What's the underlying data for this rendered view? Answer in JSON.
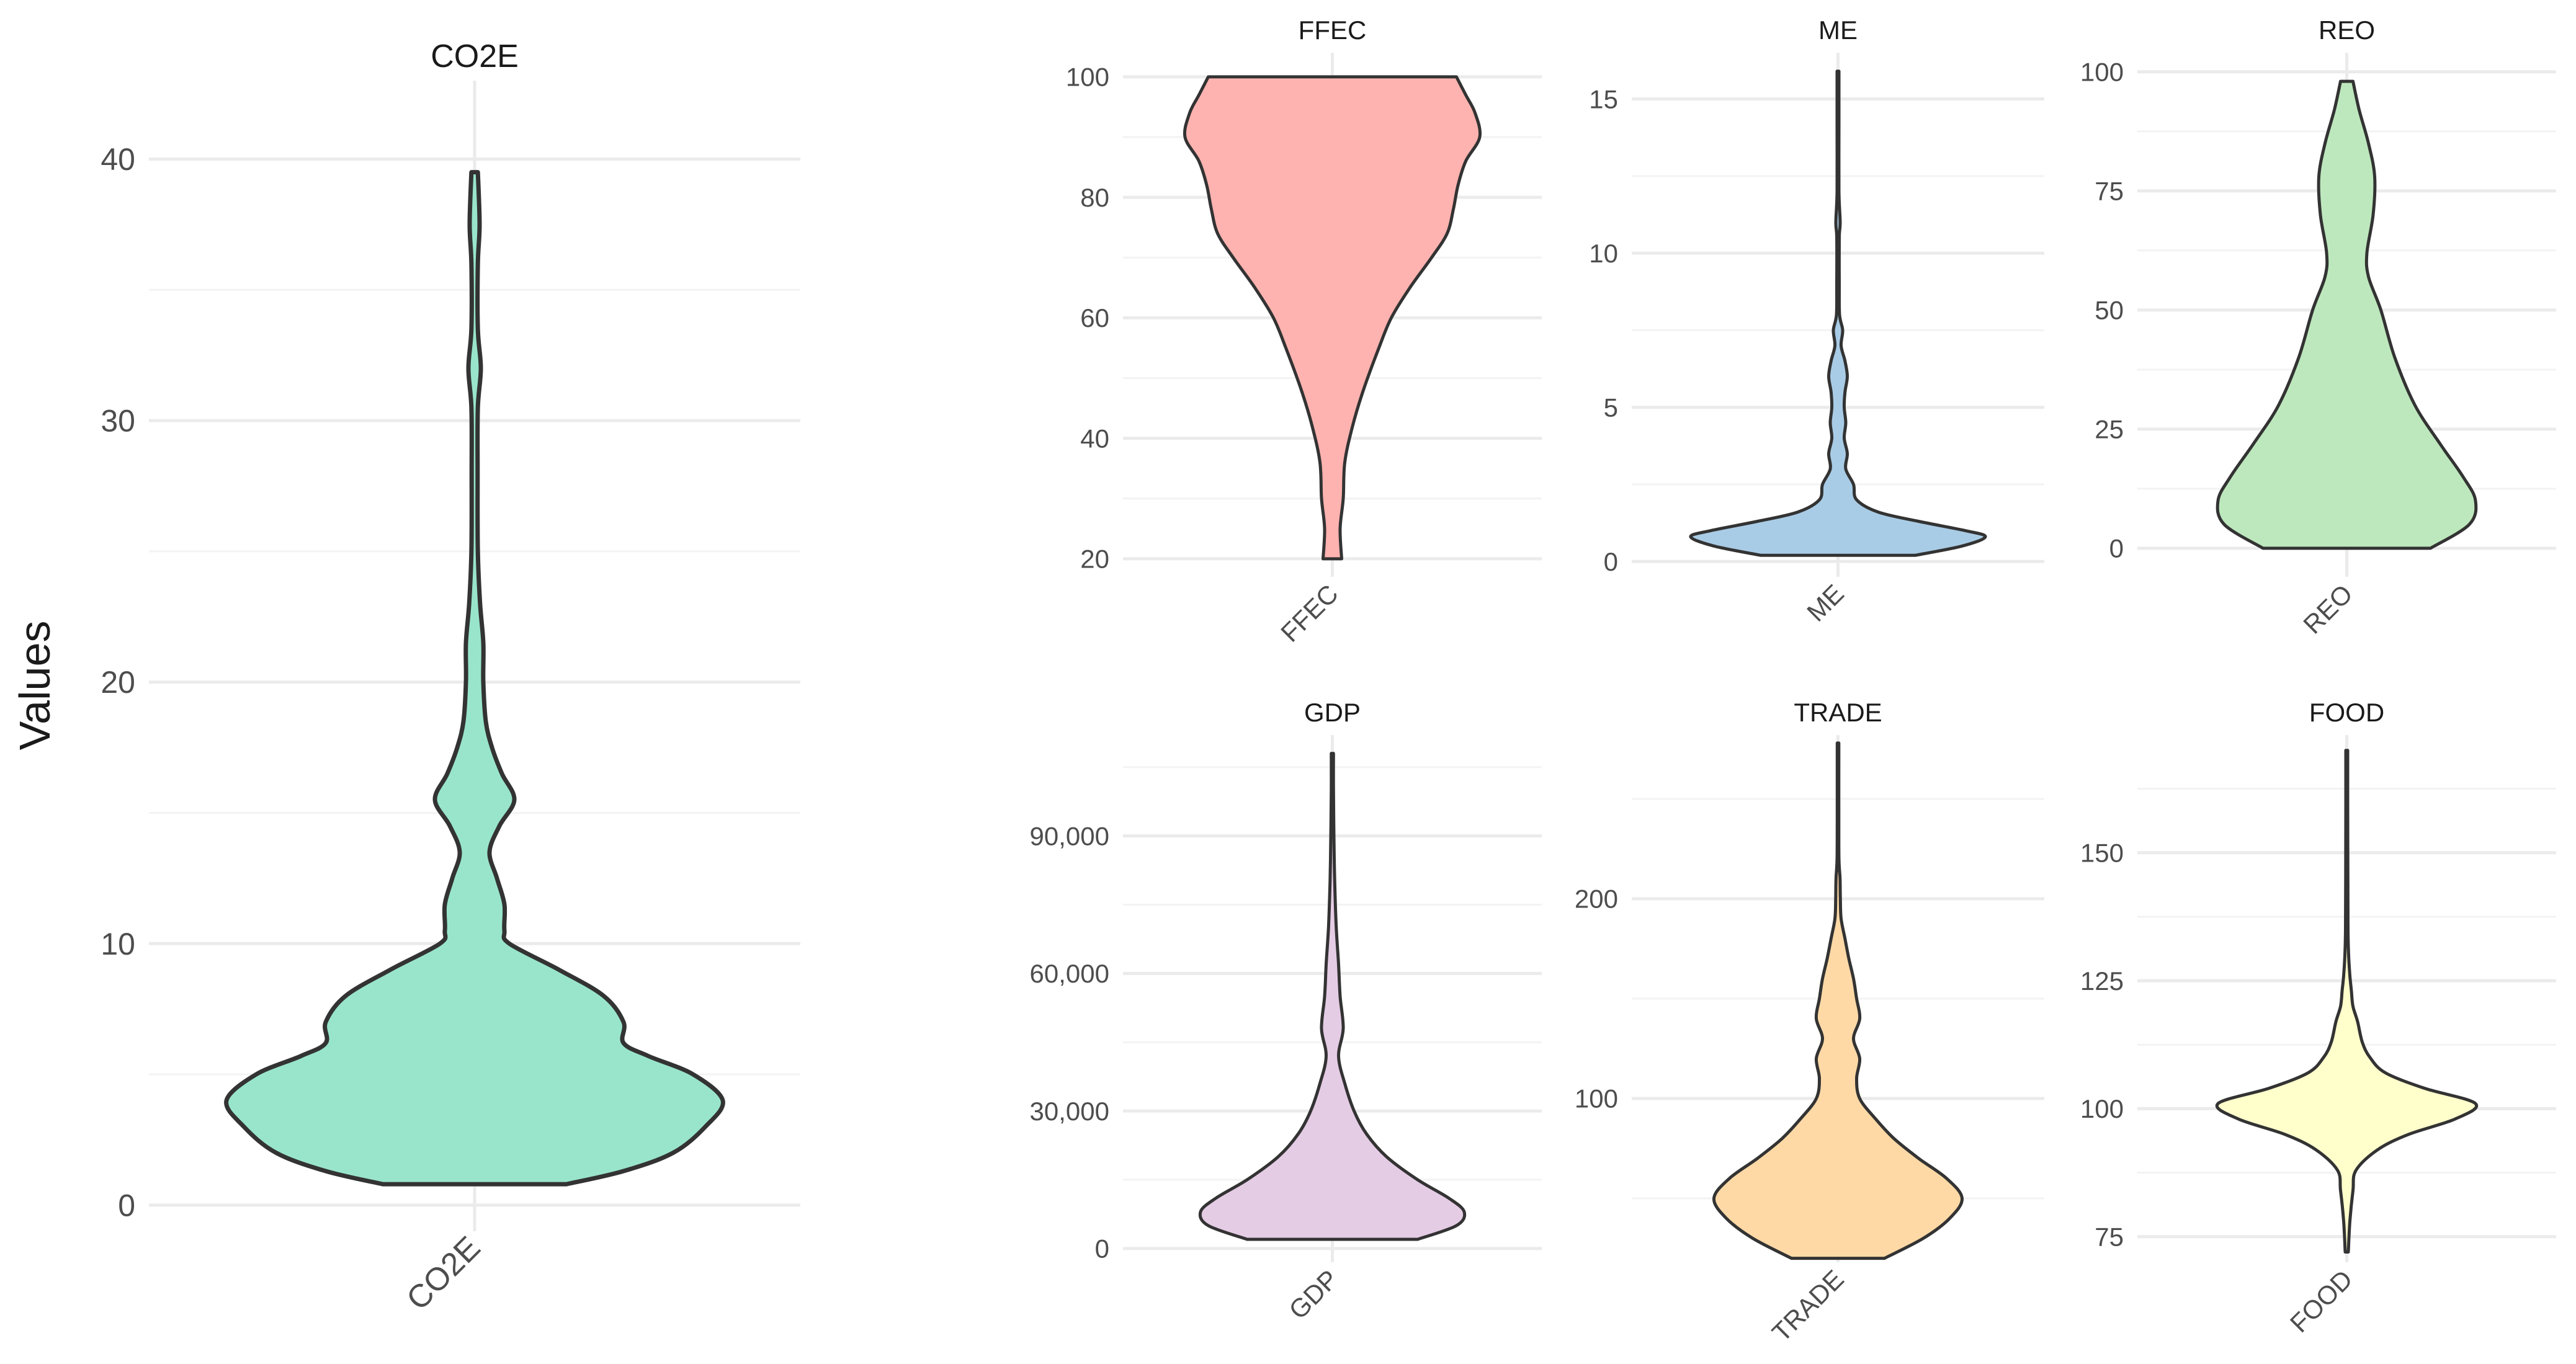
{
  "figure": {
    "ylabel": "Values"
  },
  "chart_data": [
    {
      "type": "violin",
      "title": "CO2E",
      "category": "CO2E",
      "ylim": [
        -1,
        43
      ],
      "yticks": [
        0,
        10,
        20,
        30,
        40
      ],
      "ytick_labels": [
        "0",
        "10",
        "20",
        "30",
        "40"
      ],
      "fill": "#99e5cc",
      "profile": [
        [
          0.8,
          0.37
        ],
        [
          1.3,
          0.6
        ],
        [
          2.0,
          0.8
        ],
        [
          3.0,
          0.93
        ],
        [
          4.0,
          1.0
        ],
        [
          5.0,
          0.88
        ],
        [
          5.7,
          0.7
        ],
        [
          6.2,
          0.6
        ],
        [
          7.0,
          0.6
        ],
        [
          8.0,
          0.52
        ],
        [
          9.0,
          0.34
        ],
        [
          10.0,
          0.14
        ],
        [
          10.5,
          0.12
        ],
        [
          11.5,
          0.12
        ],
        [
          12.5,
          0.09
        ],
        [
          13.5,
          0.06
        ],
        [
          14.5,
          0.1
        ],
        [
          15.5,
          0.16
        ],
        [
          16.5,
          0.11
        ],
        [
          17.5,
          0.07
        ],
        [
          18.5,
          0.045
        ],
        [
          20.0,
          0.035
        ],
        [
          21.5,
          0.035
        ],
        [
          23.0,
          0.022
        ],
        [
          25.0,
          0.013
        ],
        [
          28.0,
          0.012
        ],
        [
          30.5,
          0.013
        ],
        [
          32.0,
          0.025
        ],
        [
          33.5,
          0.013
        ],
        [
          36.0,
          0.013
        ],
        [
          37.5,
          0.02
        ],
        [
          39.5,
          0.013
        ]
      ]
    },
    {
      "type": "violin",
      "title": "FFEC",
      "category": "FFEC",
      "ylim": [
        17,
        104
      ],
      "yticks": [
        20,
        40,
        60,
        80,
        100
      ],
      "ytick_labels": [
        "20",
        "40",
        "60",
        "80",
        "100"
      ],
      "fill": "#ffb3b0",
      "profile": [
        [
          20,
          0.06
        ],
        [
          25,
          0.05
        ],
        [
          30,
          0.07
        ],
        [
          36,
          0.08
        ],
        [
          42,
          0.13
        ],
        [
          48,
          0.2
        ],
        [
          55,
          0.3
        ],
        [
          60,
          0.38
        ],
        [
          65,
          0.5
        ],
        [
          70,
          0.64
        ],
        [
          74,
          0.74
        ],
        [
          78,
          0.78
        ],
        [
          82,
          0.81
        ],
        [
          86,
          0.86
        ],
        [
          90,
          0.95
        ],
        [
          94,
          0.92
        ],
        [
          97,
          0.86
        ],
        [
          100,
          0.8
        ]
      ]
    },
    {
      "type": "violin",
      "title": "ME",
      "category": "ME",
      "ylim": [
        -0.5,
        16.5
      ],
      "yticks": [
        0,
        5,
        10,
        15
      ],
      "ytick_labels": [
        "0",
        "5",
        "10",
        "15"
      ],
      "fill": "#a9cce6",
      "profile": [
        [
          0.2,
          0.5
        ],
        [
          0.5,
          0.8
        ],
        [
          0.8,
          0.95
        ],
        [
          1.0,
          0.82
        ],
        [
          1.3,
          0.52
        ],
        [
          1.6,
          0.26
        ],
        [
          2.0,
          0.12
        ],
        [
          2.5,
          0.1
        ],
        [
          3.0,
          0.05
        ],
        [
          3.5,
          0.06
        ],
        [
          4.0,
          0.04
        ],
        [
          4.5,
          0.05
        ],
        [
          5.0,
          0.04
        ],
        [
          5.5,
          0.045
        ],
        [
          6.0,
          0.06
        ],
        [
          6.5,
          0.045
        ],
        [
          7.0,
          0.02
        ],
        [
          7.5,
          0.03
        ],
        [
          8.0,
          0.01
        ],
        [
          9.0,
          0.008
        ],
        [
          10.5,
          0.008
        ],
        [
          11.0,
          0.014
        ],
        [
          12.0,
          0.006
        ],
        [
          14.0,
          0.006
        ],
        [
          15.9,
          0.006
        ]
      ]
    },
    {
      "type": "violin",
      "title": "REO",
      "category": "REO",
      "ylim": [
        -6,
        104
      ],
      "yticks": [
        0,
        25,
        50,
        75,
        100
      ],
      "ytick_labels": [
        "0",
        "25",
        "50",
        "75",
        "100"
      ],
      "fill": "#bde8bd",
      "profile": [
        [
          0,
          0.54
        ],
        [
          5,
          0.79
        ],
        [
          10,
          0.83
        ],
        [
          15,
          0.75
        ],
        [
          22,
          0.6
        ],
        [
          30,
          0.44
        ],
        [
          40,
          0.31
        ],
        [
          50,
          0.22
        ],
        [
          57,
          0.14
        ],
        [
          62,
          0.13
        ],
        [
          70,
          0.17
        ],
        [
          78,
          0.18
        ],
        [
          85,
          0.14
        ],
        [
          92,
          0.08
        ],
        [
          98,
          0.04
        ]
      ]
    },
    {
      "type": "violin",
      "title": "GDP",
      "category": "GDP",
      "ylim": [
        -3000,
        112000
      ],
      "yticks": [
        0,
        30000,
        60000,
        90000
      ],
      "ytick_labels": [
        "0",
        "30,000",
        "60,000",
        "90,000"
      ],
      "fill": "#e5cce5",
      "profile": [
        [
          2000,
          0.55
        ],
        [
          5000,
          0.8
        ],
        [
          8000,
          0.85
        ],
        [
          11000,
          0.75
        ],
        [
          15000,
          0.55
        ],
        [
          20000,
          0.35
        ],
        [
          25000,
          0.22
        ],
        [
          30000,
          0.14
        ],
        [
          36000,
          0.08
        ],
        [
          42000,
          0.04
        ],
        [
          48000,
          0.07
        ],
        [
          55000,
          0.05
        ],
        [
          62000,
          0.04
        ],
        [
          70000,
          0.025
        ],
        [
          80000,
          0.015
        ],
        [
          90000,
          0.01
        ],
        [
          100000,
          0.007
        ],
        [
          108000,
          0.007
        ]
      ]
    },
    {
      "type": "violin",
      "title": "TRADE",
      "category": "TRADE",
      "ylim": [
        18,
        282
      ],
      "yticks": [
        100,
        200
      ],
      "ytick_labels": [
        "100",
        "200"
      ],
      "fill": "#fed9a6",
      "profile": [
        [
          20,
          0.3
        ],
        [
          30,
          0.55
        ],
        [
          40,
          0.72
        ],
        [
          50,
          0.8
        ],
        [
          60,
          0.7
        ],
        [
          70,
          0.52
        ],
        [
          80,
          0.36
        ],
        [
          90,
          0.24
        ],
        [
          100,
          0.14
        ],
        [
          110,
          0.12
        ],
        [
          120,
          0.14
        ],
        [
          130,
          0.1
        ],
        [
          140,
          0.14
        ],
        [
          150,
          0.12
        ],
        [
          160,
          0.1
        ],
        [
          170,
          0.07
        ],
        [
          180,
          0.045
        ],
        [
          190,
          0.02
        ],
        [
          200,
          0.015
        ],
        [
          210,
          0.013
        ],
        [
          220,
          0.006
        ],
        [
          240,
          0.005
        ],
        [
          270,
          0.005
        ],
        [
          278,
          0.005
        ]
      ]
    },
    {
      "type": "violin",
      "title": "FOOD",
      "category": "FOOD",
      "ylim": [
        70,
        173
      ],
      "yticks": [
        75,
        100,
        125,
        150
      ],
      "ytick_labels": [
        "75",
        "100",
        "125",
        "150"
      ],
      "fill": "#ffffcc",
      "profile": [
        [
          72,
          0.01
        ],
        [
          78,
          0.02
        ],
        [
          84,
          0.04
        ],
        [
          88,
          0.06
        ],
        [
          92,
          0.2
        ],
        [
          95,
          0.4
        ],
        [
          98,
          0.7
        ],
        [
          101,
          0.83
        ],
        [
          104,
          0.5
        ],
        [
          107,
          0.25
        ],
        [
          110,
          0.15
        ],
        [
          113,
          0.1
        ],
        [
          117,
          0.07
        ],
        [
          120,
          0.04
        ],
        [
          123,
          0.03
        ],
        [
          126,
          0.02
        ],
        [
          130,
          0.012
        ],
        [
          135,
          0.008
        ],
        [
          145,
          0.007
        ],
        [
          160,
          0.006
        ],
        [
          170,
          0.006
        ]
      ]
    }
  ]
}
